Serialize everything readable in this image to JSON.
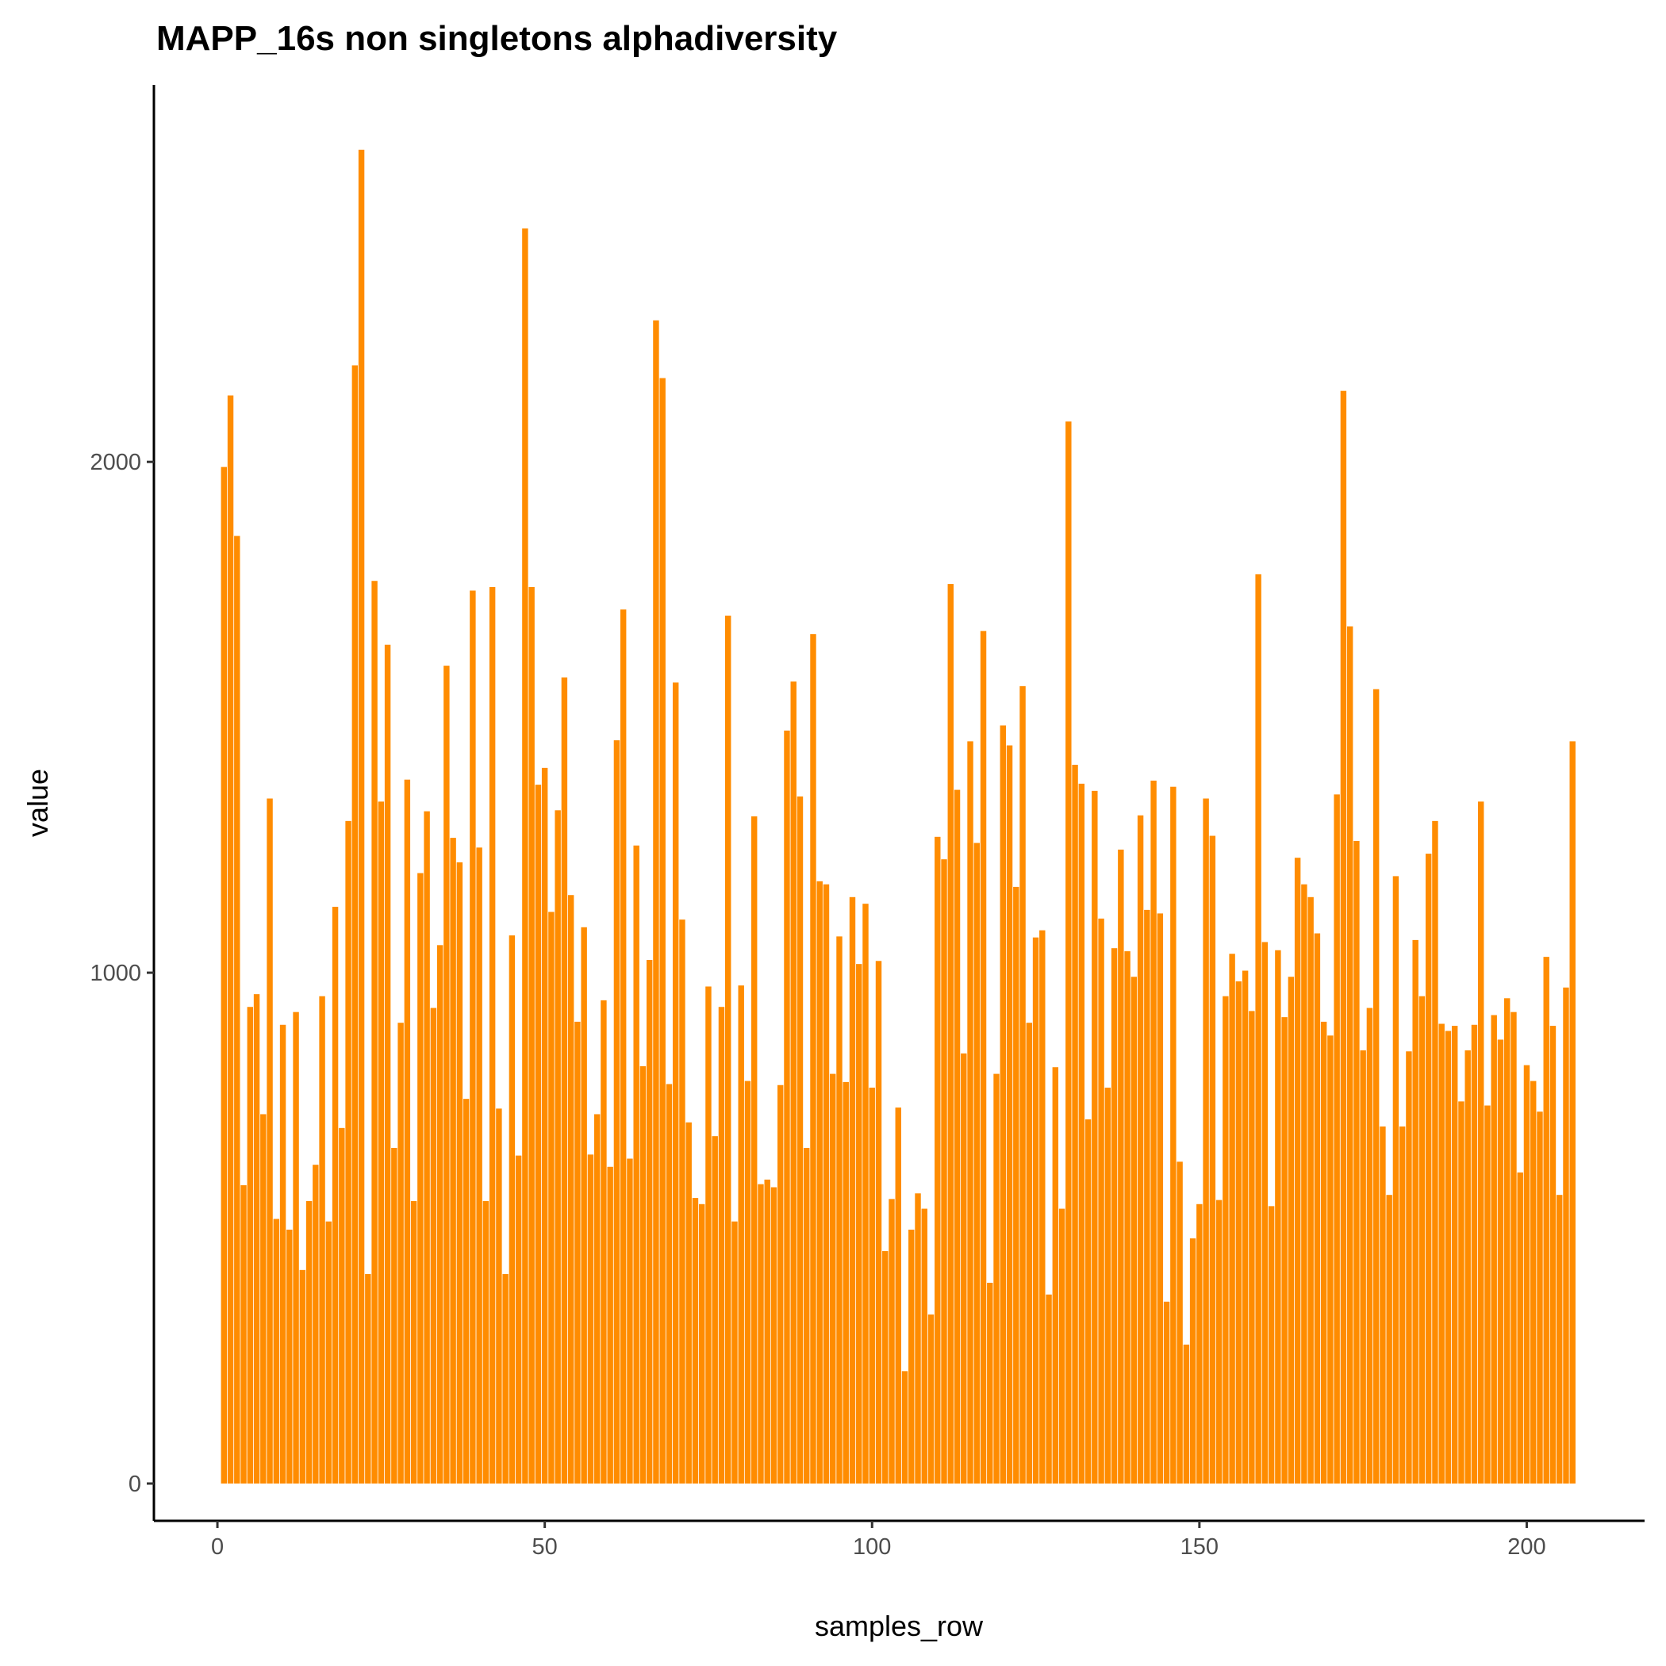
{
  "chart_data": {
    "type": "bar",
    "title": "MAPP_16s non singletons alphadiversity",
    "x_label": "samples_row",
    "y_label": "value",
    "color": "#ff8c00",
    "xlim": [
      -9.7,
      218
    ],
    "ylim": [
      -73,
      2738
    ],
    "xticks": [
      0,
      50,
      100,
      150,
      200
    ],
    "yticks": [
      0,
      1000,
      2000
    ],
    "grid": false,
    "x": [
      1,
      2,
      3,
      4,
      5,
      6,
      7,
      8,
      9,
      10,
      11,
      12,
      13,
      14,
      15,
      16,
      17,
      18,
      19,
      20,
      21,
      22,
      23,
      24,
      25,
      26,
      27,
      28,
      29,
      30,
      31,
      32,
      33,
      34,
      35,
      36,
      37,
      38,
      39,
      40,
      41,
      42,
      43,
      44,
      45,
      46,
      47,
      48,
      49,
      50,
      51,
      52,
      53,
      54,
      55,
      56,
      57,
      58,
      59,
      60,
      61,
      62,
      63,
      64,
      65,
      66,
      67,
      68,
      69,
      70,
      71,
      72,
      73,
      74,
      75,
      76,
      77,
      78,
      79,
      80,
      81,
      82,
      83,
      84,
      85,
      86,
      87,
      88,
      89,
      90,
      91,
      92,
      93,
      94,
      95,
      96,
      97,
      98,
      99,
      100,
      101,
      102,
      103,
      104,
      105,
      106,
      107,
      108,
      109,
      110,
      111,
      112,
      113,
      114,
      115,
      116,
      117,
      118,
      119,
      120,
      121,
      122,
      123,
      124,
      125,
      126,
      127,
      128,
      129,
      130,
      131,
      132,
      133,
      134,
      135,
      136,
      137,
      138,
      139,
      140,
      141,
      142,
      143,
      144,
      145,
      146,
      147,
      148,
      149,
      150,
      151,
      152,
      153,
      154,
      155,
      156,
      157,
      158,
      159,
      160,
      161,
      162,
      163,
      164,
      165,
      166,
      167,
      168,
      169,
      170,
      171,
      172,
      173,
      174,
      175,
      176,
      177,
      178,
      179,
      180,
      181,
      182,
      183,
      184,
      185,
      186,
      187,
      188,
      189,
      190,
      191,
      192,
      193,
      194,
      195,
      196,
      197,
      198,
      199,
      200,
      201,
      202,
      203,
      204,
      205,
      206,
      207
    ],
    "values": [
      1990,
      2130,
      1855,
      584,
      933,
      958,
      723,
      1341,
      518,
      898,
      497,
      923,
      418,
      553,
      624,
      954,
      513,
      1129,
      696,
      1297,
      2189,
      2611,
      410,
      1767,
      1335,
      1642,
      657,
      902,
      1378,
      553,
      1195,
      1316,
      931,
      1054,
      1601,
      1264,
      1216,
      753,
      1748,
      1245,
      553,
      1755,
      734,
      410,
      1073,
      642,
      2457,
      1755,
      1368,
      1401,
      1119,
      1318,
      1578,
      1152,
      904,
      1089,
      644,
      723,
      946,
      620,
      1455,
      1711,
      636,
      1249,
      817,
      1025,
      2277,
      2164,
      782,
      1568,
      1104,
      707,
      559,
      547,
      973,
      680,
      933,
      1699,
      513,
      975,
      788,
      1306,
      586,
      595,
      580,
      780,
      1474,
      1570,
      1345,
      657,
      1663,
      1179,
      1173,
      802,
      1071,
      786,
      1148,
      1017,
      1135,
      775,
      1023,
      455,
      557,
      736,
      220,
      497,
      568,
      538,
      331,
      1266,
      1222,
      1761,
      1358,
      842,
      1453,
      1254,
      1669,
      393,
      802,
      1484,
      1445,
      1168,
      1561,
      902,
      1069,
      1083,
      370,
      815,
      538,
      2079,
      1407,
      1370,
      713,
      1356,
      1106,
      775,
      1048,
      1241,
      1042,
      992,
      1308,
      1123,
      1376,
      1116,
      356,
      1364,
      630,
      272,
      480,
      547,
      1341,
      1268,
      555,
      954,
      1037,
      983,
      1004,
      925,
      1780,
      1060,
      543,
      1044,
      913,
      992,
      1225,
      1173,
      1148,
      1077,
      904,
      877,
      1349,
      2139,
      1678,
      1258,
      848,
      931,
      1555,
      699,
      565,
      1189,
      699,
      846,
      1064,
      954,
      1233,
      1297,
      900,
      886,
      896,
      748,
      848,
      898,
      1335,
      740,
      917,
      869,
      950,
      923,
      609,
      819,
      788,
      728,
      1031,
      896,
      565,
      971,
      1453
    ]
  }
}
